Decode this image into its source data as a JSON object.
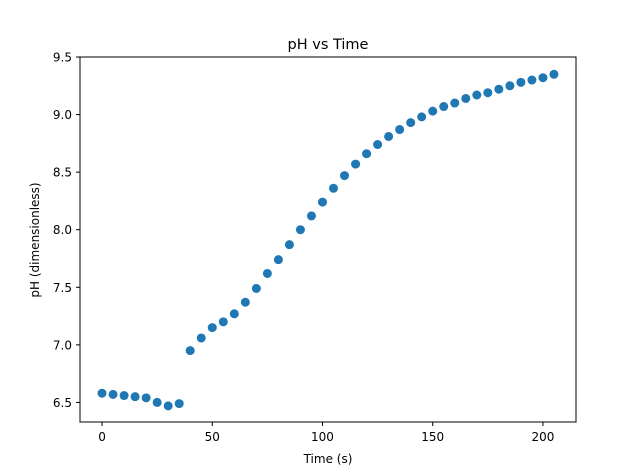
{
  "chart_data": {
    "type": "scatter",
    "title": "pH vs Time",
    "xlabel": "Time (s)",
    "ylabel": "pH (dimensionless)",
    "xlim": [
      -10,
      215
    ],
    "ylim": [
      6.33,
      9.5
    ],
    "xticks": [
      0,
      50,
      100,
      150,
      200
    ],
    "yticks": [
      6.5,
      7.0,
      7.5,
      8.0,
      8.5,
      9.0,
      9.5
    ],
    "xtick_labels": [
      "0",
      "50",
      "100",
      "150",
      "200"
    ],
    "ytick_labels": [
      "6.5",
      "7.0",
      "7.5",
      "8.0",
      "8.5",
      "9.0",
      "9.5"
    ],
    "grid": false,
    "marker_color": "#1f77b4",
    "x": [
      0,
      5,
      10,
      15,
      20,
      25,
      30,
      35,
      40,
      45,
      50,
      55,
      60,
      65,
      70,
      75,
      80,
      85,
      90,
      95,
      100,
      105,
      110,
      115,
      120,
      125,
      130,
      135,
      140,
      145,
      150,
      155,
      160,
      165,
      170,
      175,
      180,
      185,
      190,
      195,
      200,
      205
    ],
    "y": [
      6.58,
      6.57,
      6.56,
      6.55,
      6.54,
      6.5,
      6.47,
      6.49,
      6.95,
      7.06,
      7.15,
      7.2,
      7.27,
      7.37,
      7.49,
      7.62,
      7.74,
      7.87,
      8.0,
      8.12,
      8.24,
      8.36,
      8.47,
      8.57,
      8.66,
      8.74,
      8.81,
      8.87,
      8.93,
      8.98,
      9.03,
      9.07,
      9.1,
      9.14,
      9.17,
      9.19,
      9.22,
      9.25,
      9.28,
      9.3,
      9.32,
      9.35
    ]
  }
}
